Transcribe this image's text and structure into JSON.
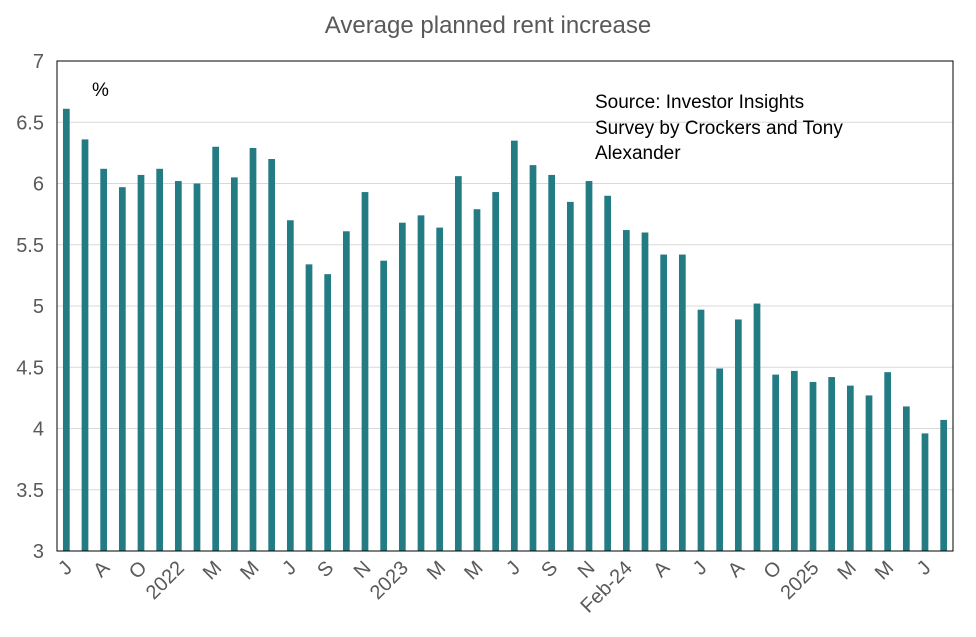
{
  "chart_data": {
    "type": "bar",
    "title": "Average planned rent increase",
    "ylabel": "%",
    "ylim": [
      3,
      7
    ],
    "yticks": [
      "3",
      "3.5",
      "4",
      "4.5",
      "5",
      "5.5",
      "6",
      "6.5",
      "7"
    ],
    "grid": true,
    "legend": "none",
    "annotation": [
      "Source: Investor Insights",
      "Survey by Crockers and Tony",
      "Alexander"
    ],
    "categories": [
      "J",
      "",
      "A",
      "",
      "O",
      "",
      "2022",
      "",
      "M",
      "",
      "M",
      "",
      "J",
      "",
      "S",
      "",
      "N",
      "",
      "2023",
      "",
      "M",
      "",
      "M",
      "",
      "J",
      "",
      "S",
      "",
      "N",
      "",
      "Feb-24",
      "",
      "A",
      "",
      "J",
      "",
      "A",
      "",
      "O",
      "",
      "2025",
      "",
      "M",
      "",
      "M",
      "",
      "J",
      ""
    ],
    "values": [
      6.61,
      6.36,
      6.12,
      5.97,
      6.07,
      6.12,
      6.02,
      6.0,
      6.3,
      6.05,
      6.29,
      6.2,
      5.7,
      5.34,
      5.26,
      5.61,
      5.93,
      5.37,
      5.68,
      5.74,
      5.64,
      6.06,
      5.79,
      5.93,
      6.35,
      6.15,
      6.07,
      5.85,
      6.02,
      5.9,
      5.62,
      5.6,
      5.42,
      5.42,
      4.97,
      4.49,
      4.89,
      5.02,
      4.44,
      4.47,
      4.38,
      4.42,
      4.35,
      4.27,
      4.46,
      4.18,
      3.96,
      4.07
    ],
    "colors": {
      "bar": "#237B83",
      "grid": "#D9D9D9",
      "axis": "#000000",
      "text": "#595959"
    }
  }
}
